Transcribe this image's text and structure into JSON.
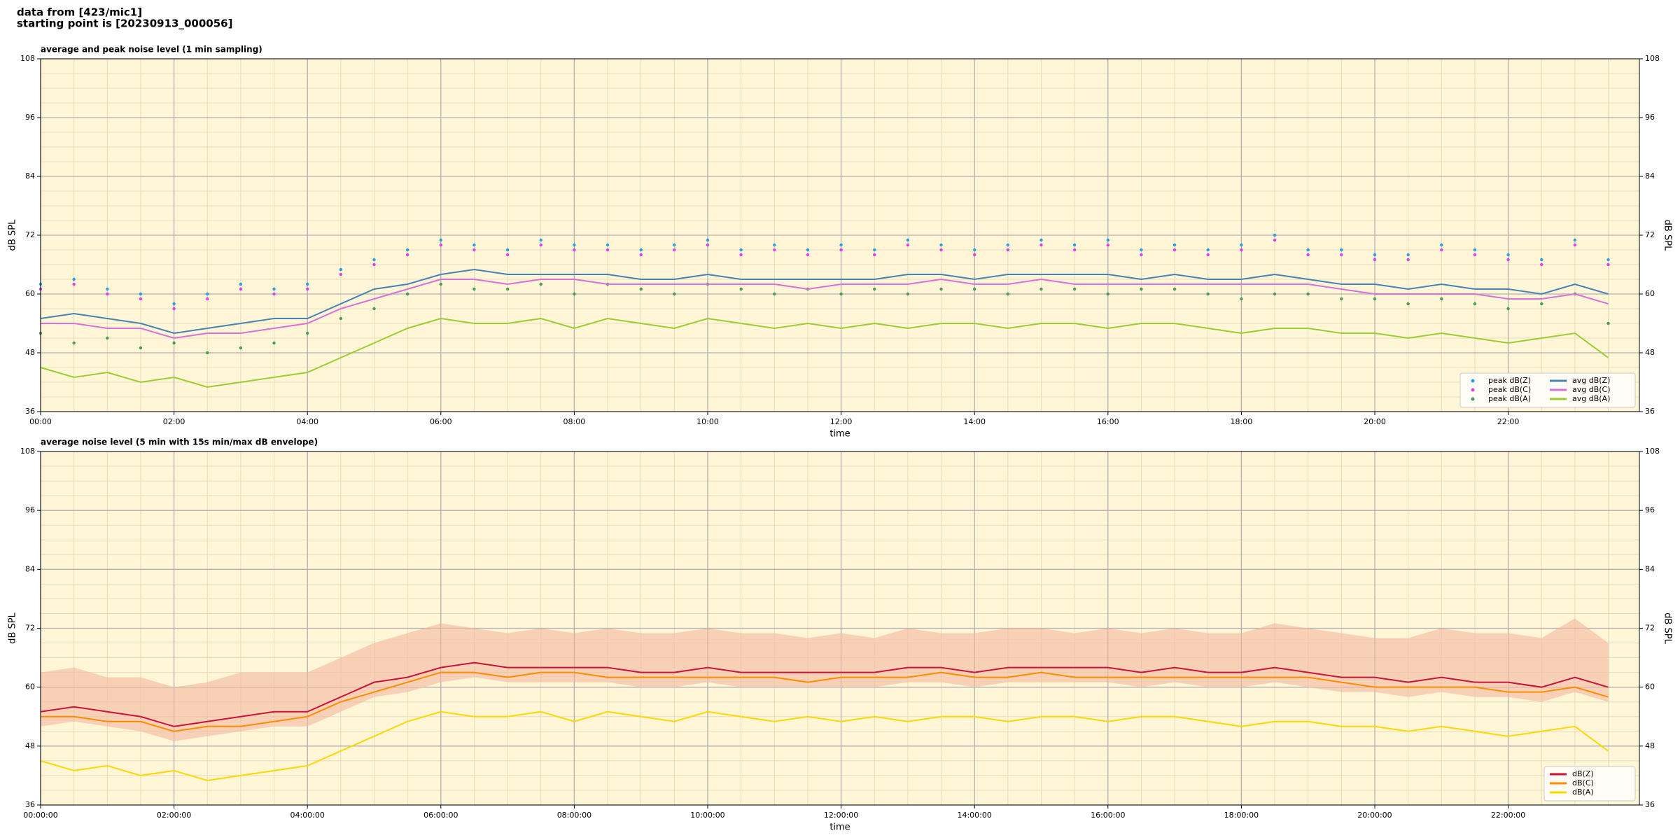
{
  "header": {
    "lines": [
      "data from [423/mic1]",
      "starting point is [20230913_000056]"
    ]
  },
  "chart_data": [
    {
      "type": "line",
      "title": "average and peak noise level (1 min sampling)",
      "xlabel": "time",
      "ylabel": "dB SPL",
      "y2label": "dB SPL",
      "x": [
        0,
        30,
        60,
        90,
        120,
        150,
        180,
        210,
        240,
        270,
        300,
        330,
        360,
        390,
        420,
        450,
        480,
        510,
        540,
        570,
        600,
        630,
        660,
        690,
        720,
        750,
        780,
        810,
        840,
        870,
        900,
        930,
        960,
        990,
        1020,
        1050,
        1080,
        1110,
        1140,
        1170,
        1200,
        1230,
        1260,
        1290,
        1320,
        1350,
        1380,
        1410
      ],
      "xlim": [
        0,
        1438
      ],
      "ylim": [
        36,
        108
      ],
      "y2lim": [
        36,
        108
      ],
      "xticks": [
        {
          "value": 0,
          "label": "00:00"
        },
        {
          "value": 120,
          "label": "02:00"
        },
        {
          "value": 240,
          "label": "04:00"
        },
        {
          "value": 360,
          "label": "06:00"
        },
        {
          "value": 480,
          "label": "08:00"
        },
        {
          "value": 600,
          "label": "10:00"
        },
        {
          "value": 720,
          "label": "12:00"
        },
        {
          "value": 840,
          "label": "14:00"
        },
        {
          "value": 960,
          "label": "16:00"
        },
        {
          "value": 1080,
          "label": "18:00"
        },
        {
          "value": 1200,
          "label": "20:00"
        },
        {
          "value": 1320,
          "label": "22:00"
        }
      ],
      "yticks": [
        36,
        48,
        60,
        72,
        84,
        96,
        108
      ],
      "y2ticks": [
        36,
        48,
        60,
        72,
        84,
        96,
        108
      ],
      "grid": true,
      "legend": "lower right",
      "legend_columns": 2,
      "series": [
        {
          "name": "peak dB(Z)",
          "type": "scatter",
          "color": "#2a9fd8",
          "values": [
            62,
            63,
            61,
            60,
            58,
            60,
            62,
            61,
            62,
            65,
            67,
            69,
            71,
            70,
            69,
            71,
            70,
            70,
            69,
            70,
            71,
            69,
            70,
            69,
            70,
            69,
            71,
            70,
            69,
            70,
            71,
            70,
            71,
            69,
            70,
            69,
            70,
            72,
            69,
            69,
            68,
            68,
            70,
            69,
            68,
            67,
            71,
            67
          ]
        },
        {
          "name": "peak dB(C)",
          "type": "scatter",
          "color": "#e040e8",
          "values": [
            61,
            62,
            60,
            59,
            57,
            59,
            61,
            60,
            61,
            64,
            66,
            68,
            70,
            69,
            68,
            70,
            69,
            69,
            68,
            69,
            70,
            68,
            69,
            68,
            69,
            68,
            70,
            69,
            68,
            69,
            70,
            69,
            70,
            68,
            69,
            68,
            69,
            71,
            68,
            68,
            67,
            67,
            69,
            68,
            67,
            66,
            70,
            66
          ]
        },
        {
          "name": "peak dB(A)",
          "type": "scatter",
          "color": "#4a9a5a",
          "values": [
            52,
            50,
            51,
            49,
            50,
            48,
            49,
            50,
            52,
            55,
            57,
            60,
            62,
            61,
            61,
            62,
            60,
            62,
            61,
            60,
            62,
            61,
            60,
            61,
            60,
            61,
            60,
            61,
            61,
            60,
            61,
            61,
            60,
            61,
            61,
            60,
            59,
            60,
            60,
            59,
            59,
            58,
            59,
            58,
            57,
            58,
            60,
            54
          ]
        },
        {
          "name": "avg dB(Z)",
          "type": "line",
          "color": "#4682b4",
          "values": [
            55,
            56,
            55,
            54,
            52,
            53,
            54,
            55,
            55,
            58,
            61,
            62,
            64,
            65,
            64,
            64,
            64,
            64,
            63,
            63,
            64,
            63,
            63,
            63,
            63,
            63,
            64,
            64,
            63,
            64,
            64,
            64,
            64,
            63,
            64,
            63,
            63,
            64,
            63,
            62,
            62,
            61,
            62,
            61,
            61,
            60,
            62,
            60
          ]
        },
        {
          "name": "avg dB(C)",
          "type": "line",
          "color": "#da70d6",
          "values": [
            54,
            54,
            53,
            53,
            51,
            52,
            52,
            53,
            54,
            57,
            59,
            61,
            63,
            63,
            62,
            63,
            63,
            62,
            62,
            62,
            62,
            62,
            62,
            61,
            62,
            62,
            62,
            63,
            62,
            62,
            63,
            62,
            62,
            62,
            62,
            62,
            62,
            62,
            62,
            61,
            60,
            60,
            60,
            60,
            59,
            59,
            60,
            58
          ]
        },
        {
          "name": "avg dB(A)",
          "type": "line",
          "color": "#9acd32",
          "values": [
            45,
            43,
            44,
            42,
            43,
            41,
            42,
            43,
            44,
            47,
            50,
            53,
            55,
            54,
            54,
            55,
            53,
            55,
            54,
            53,
            55,
            54,
            53,
            54,
            53,
            54,
            53,
            54,
            54,
            53,
            54,
            54,
            53,
            54,
            54,
            53,
            52,
            53,
            53,
            52,
            52,
            51,
            52,
            51,
            50,
            51,
            52,
            47
          ]
        }
      ]
    },
    {
      "type": "line",
      "title": "average noise level (5 min with 15s min/max dB envelope)",
      "xlabel": "time",
      "ylabel": "dB SPL",
      "y2label": "dB SPL",
      "x": [
        0,
        30,
        60,
        90,
        120,
        150,
        180,
        210,
        240,
        270,
        300,
        330,
        360,
        390,
        420,
        450,
        480,
        510,
        540,
        570,
        600,
        630,
        660,
        690,
        720,
        750,
        780,
        810,
        840,
        870,
        900,
        930,
        960,
        990,
        1020,
        1050,
        1080,
        1110,
        1140,
        1170,
        1200,
        1230,
        1260,
        1290,
        1320,
        1350,
        1380,
        1410
      ],
      "xlim": [
        0,
        1438
      ],
      "ylim": [
        36,
        108
      ],
      "y2lim": [
        36,
        108
      ],
      "xticks": [
        {
          "value": 0,
          "label": "00:00:00"
        },
        {
          "value": 120,
          "label": "02:00:00"
        },
        {
          "value": 240,
          "label": "04:00:00"
        },
        {
          "value": 360,
          "label": "06:00:00"
        },
        {
          "value": 480,
          "label": "08:00:00"
        },
        {
          "value": 600,
          "label": "10:00:00"
        },
        {
          "value": 720,
          "label": "12:00:00"
        },
        {
          "value": 840,
          "label": "14:00:00"
        },
        {
          "value": 960,
          "label": "16:00:00"
        },
        {
          "value": 1080,
          "label": "18:00:00"
        },
        {
          "value": 1200,
          "label": "20:00:00"
        },
        {
          "value": 1320,
          "label": "22:00:00"
        }
      ],
      "yticks": [
        36,
        48,
        60,
        72,
        84,
        96,
        108
      ],
      "y2ticks": [
        36,
        48,
        60,
        72,
        84,
        96,
        108
      ],
      "grid": true,
      "legend": "lower right",
      "legend_columns": 1,
      "envelope": {
        "color": "#f4b8a0",
        "low": [
          52,
          53,
          52,
          51,
          49,
          50,
          51,
          52,
          52,
          55,
          58,
          59,
          61,
          62,
          61,
          61,
          61,
          61,
          60,
          60,
          61,
          60,
          60,
          60,
          60,
          60,
          61,
          61,
          60,
          61,
          61,
          61,
          61,
          60,
          61,
          60,
          60,
          61,
          60,
          59,
          59,
          58,
          59,
          58,
          58,
          57,
          59,
          57
        ],
        "high": [
          63,
          64,
          62,
          62,
          60,
          61,
          63,
          63,
          63,
          66,
          69,
          71,
          73,
          72,
          71,
          72,
          71,
          72,
          71,
          71,
          72,
          71,
          71,
          70,
          71,
          70,
          72,
          71,
          71,
          72,
          72,
          71,
          72,
          71,
          72,
          71,
          71,
          73,
          72,
          71,
          70,
          70,
          72,
          71,
          71,
          70,
          74,
          69
        ]
      },
      "series": [
        {
          "name": "dB(Z)",
          "type": "line",
          "color": "#c8143c",
          "values": [
            55,
            56,
            55,
            54,
            52,
            53,
            54,
            55,
            55,
            58,
            61,
            62,
            64,
            65,
            64,
            64,
            64,
            64,
            63,
            63,
            64,
            63,
            63,
            63,
            63,
            63,
            64,
            64,
            63,
            64,
            64,
            64,
            64,
            63,
            64,
            63,
            63,
            64,
            63,
            62,
            62,
            61,
            62,
            61,
            61,
            60,
            62,
            60
          ]
        },
        {
          "name": "dB(C)",
          "type": "line",
          "color": "#ff8c00",
          "values": [
            54,
            54,
            53,
            53,
            51,
            52,
            52,
            53,
            54,
            57,
            59,
            61,
            63,
            63,
            62,
            63,
            63,
            62,
            62,
            62,
            62,
            62,
            62,
            61,
            62,
            62,
            62,
            63,
            62,
            62,
            63,
            62,
            62,
            62,
            62,
            62,
            62,
            62,
            62,
            61,
            60,
            60,
            60,
            60,
            59,
            59,
            60,
            58
          ]
        },
        {
          "name": "dB(A)",
          "type": "line",
          "color": "#ffd700",
          "values": [
            45,
            43,
            44,
            42,
            43,
            41,
            42,
            43,
            44,
            47,
            50,
            53,
            55,
            54,
            54,
            55,
            53,
            55,
            54,
            53,
            55,
            54,
            53,
            54,
            53,
            54,
            53,
            54,
            54,
            53,
            54,
            54,
            53,
            54,
            54,
            53,
            52,
            53,
            53,
            52,
            52,
            51,
            52,
            51,
            50,
            51,
            52,
            47
          ]
        }
      ]
    }
  ]
}
